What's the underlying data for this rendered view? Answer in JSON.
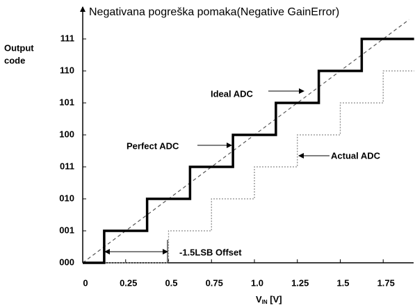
{
  "chart_data": {
    "type": "line",
    "title": "Negativana pogreška pomaka(Negative GainError)",
    "y_label": [
      "Output",
      "code"
    ],
    "x_label": [
      "V",
      "IN",
      " [V]"
    ],
    "xlim": [
      0,
      1.93
    ],
    "ylim": [
      0,
      7.8
    ],
    "xticks": [
      0,
      0.25,
      0.5,
      0.75,
      {
        "value": 1,
        "label": "1.0"
      },
      1.25,
      1.5,
      1.75
    ],
    "yticks": [
      {
        "value": 0,
        "label": "000"
      },
      {
        "value": 1,
        "label": "001"
      },
      {
        "value": 2,
        "label": "010"
      },
      {
        "value": 3,
        "label": "011"
      },
      {
        "value": 4,
        "label": "100"
      },
      {
        "value": 5,
        "label": "101"
      },
      {
        "value": 6,
        "label": "110"
      },
      {
        "value": 7,
        "label": "111"
      }
    ],
    "series": [
      {
        "name": "Ideal ADC",
        "color": "#555555",
        "style": "dashed",
        "x": [
          0,
          1.9
        ],
        "values": [
          0,
          7.6
        ]
      },
      {
        "name": "Actual ADC",
        "color": "#8c8c8c",
        "style": "dotted",
        "x": [
          0,
          0.5,
          0.5,
          0.75,
          0.75,
          1,
          1,
          1.25,
          1.25,
          1.5,
          1.5,
          1.75,
          1.75,
          1.93
        ],
        "values": [
          0,
          0,
          1,
          1,
          2,
          2,
          3,
          3,
          4,
          4,
          5,
          5,
          6,
          6
        ]
      },
      {
        "name": "Perfect ADC",
        "color": "#000000",
        "style": "thick",
        "x": [
          0,
          0.125,
          0.125,
          0.375,
          0.375,
          0.625,
          0.625,
          0.875,
          0.875,
          1.125,
          1.125,
          1.375,
          1.375,
          1.625,
          1.625,
          1.93
        ],
        "values": [
          0,
          0,
          1,
          1,
          2,
          2,
          3,
          3,
          4,
          4,
          5,
          5,
          6,
          6,
          7,
          7
        ]
      }
    ],
    "offset_annotation": "-1.5LSB Offset"
  }
}
